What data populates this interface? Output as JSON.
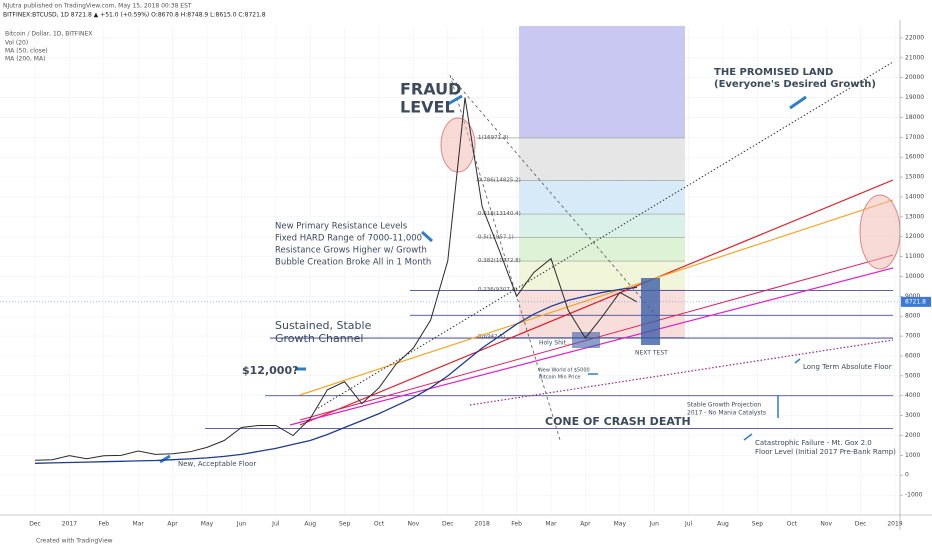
{
  "header": {
    "published": "NJutra published on TradingView.com, May 15, 2018 00:38 EST",
    "symbol": "BITFINEX:BTCUSD, 1D  8721.8 ▲ +51.0 (+0.59%) O:8670.8 H:8748.9 L:8615.0 C:8721.8"
  },
  "footer": "Created with TradingView",
  "chart_data": {
    "type": "line",
    "title": "Bitcoin / Dollar, 1D, BITFINEX",
    "indicators": [
      "Vol (20)",
      "MA (50, close)"
    ],
    "categories": [
      "Dec",
      null,
      "2017",
      null,
      "Feb",
      null,
      "Mar",
      null,
      "Apr",
      null,
      "May",
      null,
      "Jun",
      null,
      "Jul",
      null,
      "Aug",
      null,
      "Sep",
      null,
      "Oct",
      null,
      "Nov",
      null,
      "Dec",
      null,
      "2018",
      null,
      "Feb",
      null,
      "Mar",
      null,
      "Apr",
      null,
      "May",
      null,
      "Jun",
      null,
      "Jul",
      null,
      "Aug",
      null,
      "Sep",
      null,
      "Oct",
      null,
      "Nov",
      null,
      "Dec",
      null,
      "2019"
    ],
    "values": [
      750,
      780,
      990,
      830,
      980,
      1000,
      1220,
      1050,
      1080,
      1180,
      1400,
      1750,
      2400,
      2500,
      2500,
      2000,
      2850,
      4300,
      4700,
      3600,
      4400,
      5600,
      6400,
      7800,
      10800,
      19000,
      13500,
      11300,
      9000,
      10200,
      10900,
      8300,
      6900,
      8000,
      9200,
      8720,
      null,
      null,
      null,
      null,
      null,
      null,
      null,
      null,
      null,
      null,
      null,
      null,
      null,
      null,
      null
    ],
    "color": "#2b2b2b",
    "series": [
      {
        "name": "MA (200, MA)",
        "color": "#1f3b8f",
        "values": [
          600,
          620,
          640,
          660,
          680,
          700,
          720,
          740,
          780,
          820,
          870,
          950,
          1050,
          1200,
          1350,
          1550,
          1750,
          2050,
          2400,
          2750,
          3100,
          3500,
          3900,
          4400,
          5000,
          5700,
          6400,
          7000,
          7600,
          8100,
          8500,
          8800,
          9000,
          9200,
          9350,
          9450,
          null,
          null,
          null,
          null,
          null,
          null,
          null,
          null,
          null,
          null,
          null,
          null,
          null,
          null,
          null
        ]
      }
    ],
    "last_price": 8721.8,
    "ylim": [
      -2000,
      22600
    ],
    "yticks": [
      -1000,
      0,
      1000,
      2000,
      3000,
      4000,
      5000,
      6000,
      7000,
      8000,
      9000,
      10000,
      11000,
      12000,
      13000,
      14000,
      15000,
      16000,
      17000,
      18000,
      19000,
      20000,
      21000,
      22000
    ],
    "grid": true,
    "levels": [
      9300,
      8050,
      6900,
      4000,
      2350
    ],
    "fib_levels": [
      {
        "value": 16971.3,
        "label": "1(16971.3)"
      },
      {
        "value": 14825.2,
        "label": "0.786(14825.2)"
      },
      {
        "value": 13140.4,
        "label": "0.618(13140.4)"
      },
      {
        "value": 11957.1,
        "label": "0.5(11957.1)"
      },
      {
        "value": 10772.8,
        "label": "0.382(10772.8)"
      },
      {
        "value": 9307.4,
        "label": "0.236(9307.4)"
      },
      {
        "value": 6942.5,
        "label": "0(6942.5)"
      }
    ],
    "annotations": [
      "FRAUD",
      "LEVEL",
      "THE PROMISED LAND",
      "(Everyone's Desired Growth)",
      "New Primary Resistance Levels",
      "Fixed HARD Range of 7000-11,000",
      "Resistance Grows Higher w/ Growth",
      "Bubble Creation Broke All in 1 Month",
      "Sustained, Stable",
      "Growth Channel",
      "$12,000?",
      "Holy Shit...",
      "NEXT TEST",
      "New World of $5000",
      "Bitcoin Min Price",
      "Long Term Absolute Floor",
      "Stable Growth Projection",
      "2017 - No Mania Catalysts",
      "CONE OF CRASH DEATH",
      "Catastrophic Failure - Mt. Gox 2.0",
      "Floor Level (Initial 2017 Pre-Bank Ramp)",
      "New, Acceptable Floor"
    ]
  }
}
